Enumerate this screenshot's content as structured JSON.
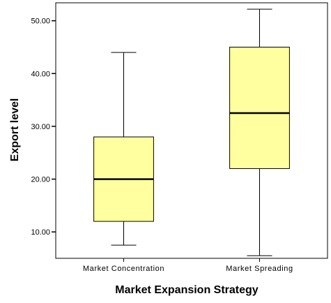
{
  "chart_data": {
    "type": "box",
    "xlabel": "Market Expansion Strategy",
    "ylabel": "Export level",
    "ylim": [
      5.0,
      53.4
    ],
    "yticks": [
      "10.00",
      "20.00",
      "30.00",
      "40.00",
      "50.00"
    ],
    "ytick_values": [
      10,
      20,
      30,
      40,
      50
    ],
    "grid": false,
    "categories": [
      "Market Concentration",
      "Market Spreading"
    ],
    "boxes": [
      {
        "category": "Market Concentration",
        "min": 7.5,
        "q1": 12.0,
        "median": 20.0,
        "q3": 28.0,
        "max": 44.0
      },
      {
        "category": "Market Spreading",
        "min": 5.5,
        "q1": 22.0,
        "median": 32.5,
        "q3": 45.0,
        "max": 52.2
      }
    ],
    "box_color": "#ffff9f"
  }
}
